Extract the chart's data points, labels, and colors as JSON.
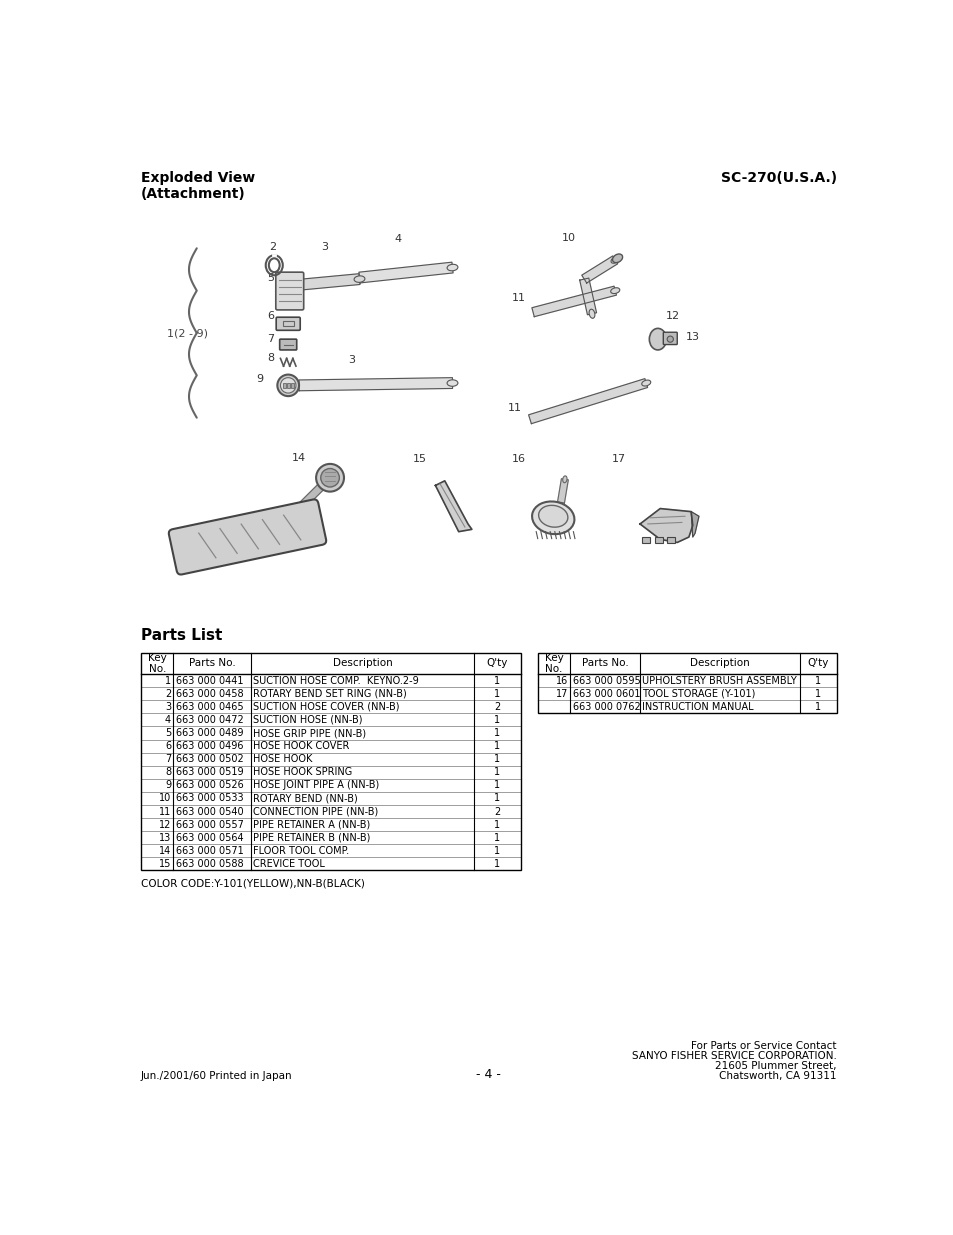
{
  "title_left": "Exploded View\n(Attachment)",
  "title_right": "SC-270(U.S.A.)",
  "parts_list_title": "Parts List",
  "table_left_headers": [
    "Key\nNo.",
    "Parts No.",
    "Description",
    "Q'ty"
  ],
  "table_left_rows": [
    [
      "1",
      "663 000 0441",
      "SUCTION HOSE COMP.  KEYNO.2-9",
      "1"
    ],
    [
      "2",
      "663 000 0458",
      "ROTARY BEND SET RING (NN-B)",
      "1"
    ],
    [
      "3",
      "663 000 0465",
      "SUCTION HOSE COVER (NN-B)",
      "2"
    ],
    [
      "4",
      "663 000 0472",
      "SUCTION HOSE (NN-B)",
      "1"
    ],
    [
      "5",
      "663 000 0489",
      "HOSE GRIP PIPE (NN-B)",
      "1"
    ],
    [
      "6",
      "663 000 0496",
      "HOSE HOOK COVER",
      "1"
    ],
    [
      "7",
      "663 000 0502",
      "HOSE HOOK",
      "1"
    ],
    [
      "8",
      "663 000 0519",
      "HOSE HOOK SPRING",
      "1"
    ],
    [
      "9",
      "663 000 0526",
      "HOSE JOINT PIPE A (NN-B)",
      "1"
    ],
    [
      "10",
      "663 000 0533",
      "ROTARY BEND (NN-B)",
      "1"
    ],
    [
      "11",
      "663 000 0540",
      "CONNECTION PIPE (NN-B)",
      "2"
    ],
    [
      "12",
      "663 000 0557",
      "PIPE RETAINER A (NN-B)",
      "1"
    ],
    [
      "13",
      "663 000 0564",
      "PIPE RETAINER B (NN-B)",
      "1"
    ],
    [
      "14",
      "663 000 0571",
      "FLOOR TOOL COMP.",
      "1"
    ],
    [
      "15",
      "663 000 0588",
      "CREVICE TOOL",
      "1"
    ]
  ],
  "table_right_headers": [
    "Key\nNo.",
    "Parts No.",
    "Description",
    "Q'ty"
  ],
  "table_right_rows": [
    [
      "16",
      "663 000 0595",
      "UPHOLSTERY BRUSH ASSEMBLY",
      "1"
    ],
    [
      "17",
      "663 000 0601",
      "TOOL STORAGE (Y-101)",
      "1"
    ],
    [
      "",
      "663 000 0762",
      "INSTRUCTION MANUAL",
      "1"
    ]
  ],
  "color_code": "COLOR CODE:Y-101(YELLOW),NN-B(BLACK)",
  "footer_left": "Jun./2001/60 Printed in Japan",
  "footer_center": "- 4 -",
  "footer_right_lines": [
    "For Parts or Service Contact",
    "SANYO FISHER SERVICE CORPORATION.",
    "21605 Plummer Street,",
    "Chatsworth, CA 91311"
  ],
  "bg_color": "#ffffff",
  "text_color": "#000000"
}
